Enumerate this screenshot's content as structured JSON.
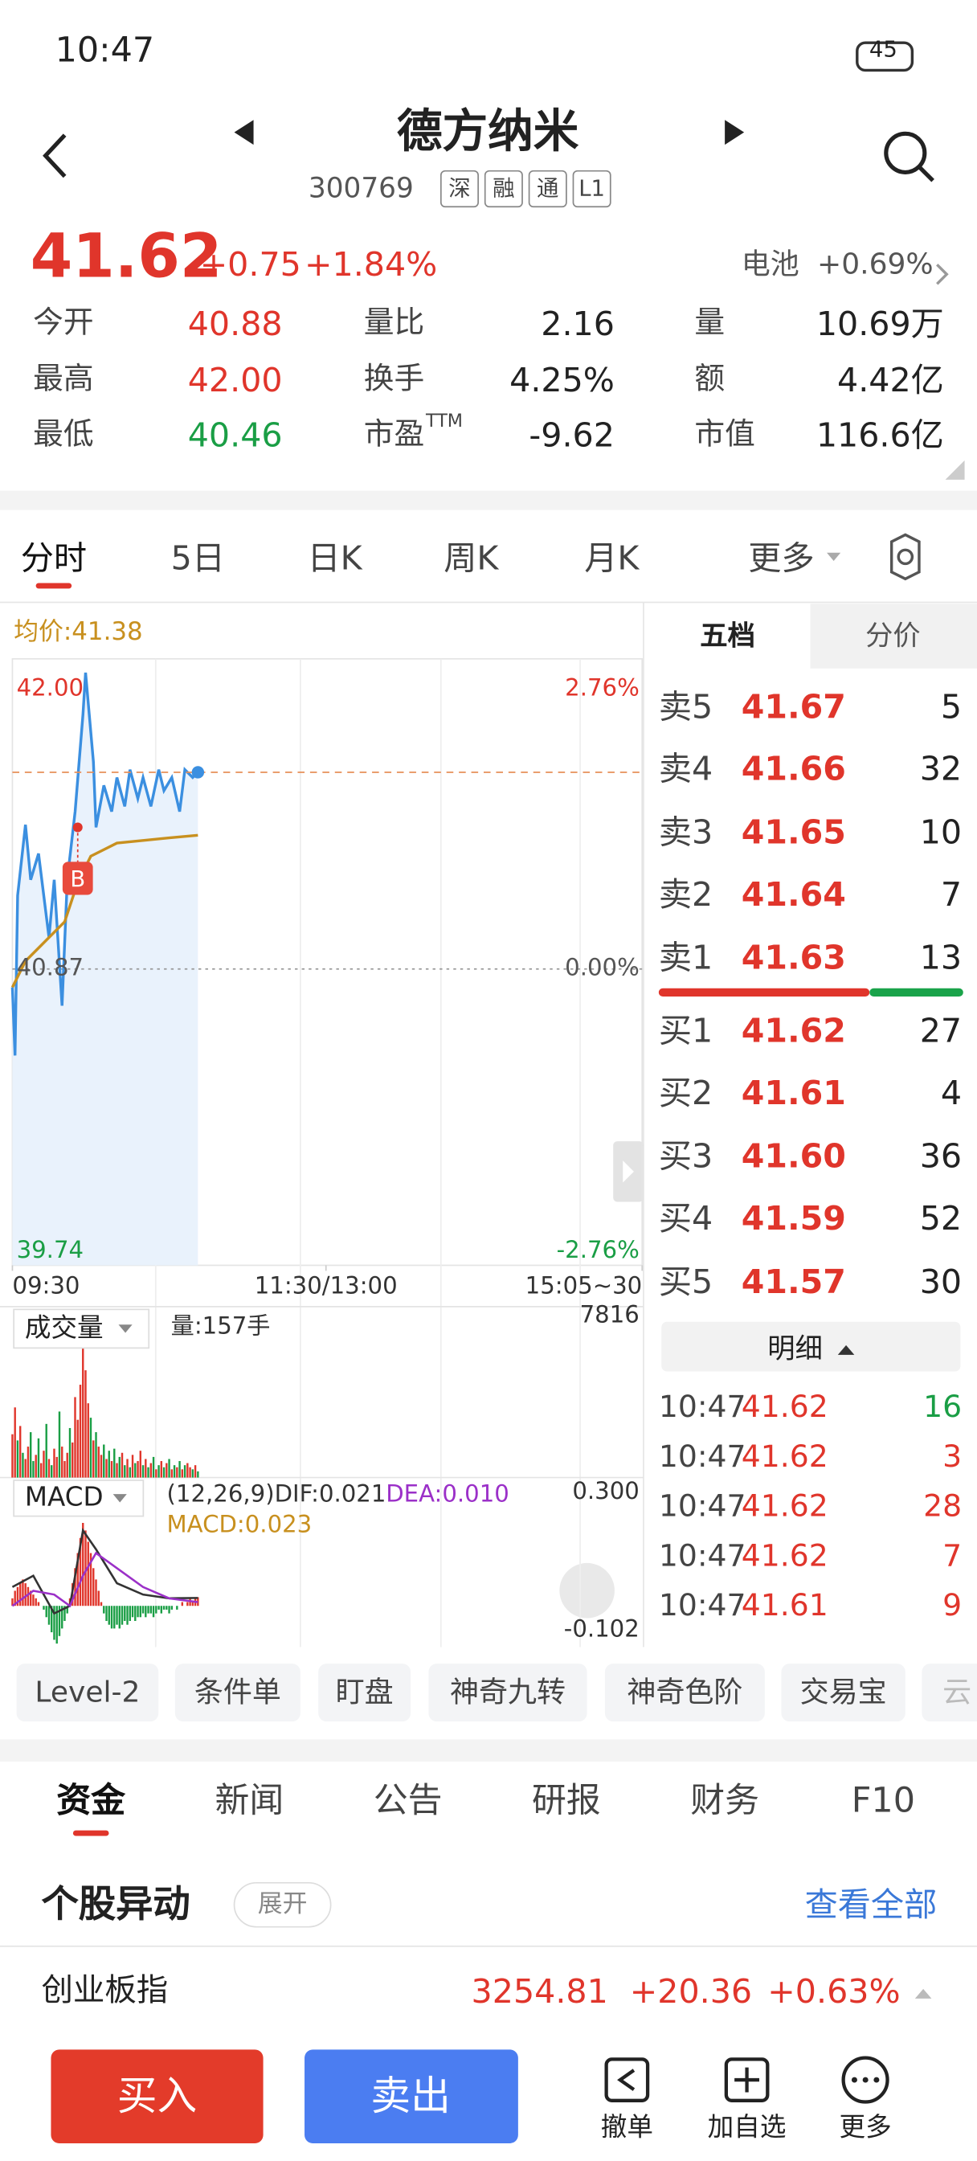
{
  "status": {
    "time": "10:47",
    "battery": "45"
  },
  "header": {
    "title": "德方纳米",
    "code": "300769",
    "tags": [
      "深",
      "融",
      "通",
      "L1"
    ]
  },
  "quote": {
    "price": "41.62",
    "change": "+0.75",
    "pct": "+1.84%",
    "sector": "电池",
    "sector_pct": "+0.69%"
  },
  "stats": [
    {
      "label": "今开",
      "value": "40.88",
      "color": "#e0352b"
    },
    {
      "label": "最高",
      "value": "42.00",
      "color": "#e0352b"
    },
    {
      "label": "最低",
      "value": "40.46",
      "color": "#1a9e45"
    },
    {
      "label": "量比",
      "value": "2.16"
    },
    {
      "label": "换手",
      "value": "4.25%"
    },
    {
      "label": "市盈",
      "sup": "TTM",
      "value": "-9.62"
    },
    {
      "label": "量",
      "value": "10.69万"
    },
    {
      "label": "额",
      "value": "4.42亿"
    },
    {
      "label": "市值",
      "value": "116.6亿"
    }
  ],
  "tabs": [
    "分时",
    "5日",
    "日K",
    "周K",
    "月K",
    "更多"
  ],
  "intraday": {
    "type": "line",
    "avg_label": "均价:41.38",
    "xlim": [
      0,
      241
    ],
    "xticks": [
      {
        "value": 0,
        "label": "09:30"
      },
      {
        "value": 120,
        "label": "11:30/13:00"
      },
      {
        "value": 241,
        "label": "15:05~30"
      }
    ],
    "ylim": [
      39.74,
      42
    ],
    "yticks": [
      {
        "value": 42,
        "label": "42.00"
      },
      40.87,
      39.74
    ],
    "y2lim": [
      -2.76,
      2.76
    ],
    "y2ticks": [
      {
        "value": 2.76,
        "label": "2.76%"
      },
      {
        "value": 0,
        "label": "0.00%"
      },
      {
        "value": -2.76,
        "label": "-2.76%"
      }
    ],
    "series": [
      {
        "color": "#3b8fe0",
        "x": [
          0,
          1,
          2,
          5,
          7,
          10,
          14,
          16,
          19,
          21,
          24,
          27,
          28,
          31,
          32,
          35,
          38,
          40,
          43,
          45,
          48,
          50,
          53,
          56,
          58,
          61,
          64,
          66,
          69,
          71
        ],
        "values": [
          40.8,
          40.54,
          41.15,
          41.42,
          41.21,
          41.31,
          40.99,
          41.21,
          40.73,
          41.21,
          41.47,
          41.84,
          42.0,
          41.66,
          41.41,
          41.57,
          41.47,
          41.6,
          41.49,
          41.63,
          41.52,
          41.6,
          41.49,
          41.63,
          41.55,
          41.6,
          41.47,
          41.63,
          41.6,
          41.62
        ]
      },
      {
        "color": "#c8901f",
        "x": [
          0,
          5,
          10,
          20,
          25,
          30,
          40,
          50,
          60,
          71
        ],
        "values": [
          40.8,
          40.9,
          40.95,
          41.05,
          41.2,
          41.3,
          41.35,
          41.36,
          41.37,
          41.38
        ]
      }
    ],
    "buy_marker": {
      "x": 25,
      "value": 41.41,
      "label": "B"
    }
  },
  "volume": {
    "type": "bar",
    "label": "成交量",
    "info": "量:157手",
    "xlim": [
      0,
      241
    ],
    "ylim": [
      0,
      7816
    ],
    "yticks": [
      7816
    ],
    "values": [
      2100,
      3400,
      1800,
      2500,
      1200,
      900,
      1500,
      2200,
      800,
      1100,
      1900,
      700,
      1300,
      2600,
      900,
      600,
      1400,
      1000,
      3200,
      1500,
      800,
      1200,
      2400,
      1700,
      3900,
      2800,
      4500,
      7816,
      5200,
      3600,
      2900,
      1800,
      2200,
      1500,
      1100,
      1600,
      900,
      1300,
      800,
      1400,
      700,
      1000,
      1200,
      600,
      900,
      500,
      1100,
      700,
      800,
      1300,
      600,
      900,
      500,
      700,
      1000,
      400,
      600,
      800,
      500,
      700,
      900,
      400,
      600,
      500,
      800,
      400,
      600,
      700,
      500,
      400,
      600,
      300
    ],
    "colors": "rrgrgrrggrgrrgrgrrgrrrgrrrrrrrgrgrrgrgrgrgrgrgrgrrgrgrgrgrgrgrgrgrgrrgrg"
  },
  "macd": {
    "type": "bar",
    "label": "MACD",
    "params": "(12,26,9)DIF:0.021",
    "dea": "DEA:0.010",
    "macd": "MACD:0.023",
    "xlim": [
      0,
      241
    ],
    "ylim": [
      -0.102,
      0.3
    ],
    "yticks": [
      {
        "value": 0.3,
        "label": "0.300"
      },
      -0.102
    ],
    "histogram": [
      0.02,
      0.04,
      0.05,
      0.06,
      0.07,
      0.06,
      0.05,
      0.04,
      0.03,
      0.02,
      0.01,
      0.0,
      -0.01,
      -0.03,
      -0.05,
      -0.07,
      -0.09,
      -0.1,
      -0.08,
      -0.06,
      -0.04,
      -0.02,
      0.02,
      0.06,
      0.1,
      0.14,
      0.18,
      0.22,
      0.2,
      0.17,
      0.14,
      0.1,
      0.07,
      0.04,
      0.01,
      -0.02,
      -0.04,
      -0.05,
      -0.06,
      -0.06,
      -0.05,
      -0.06,
      -0.05,
      -0.04,
      -0.05,
      -0.04,
      -0.03,
      -0.04,
      -0.03,
      -0.03,
      -0.02,
      -0.03,
      -0.02,
      -0.02,
      -0.03,
      -0.02,
      -0.01,
      -0.02,
      -0.01,
      -0.01,
      -0.02,
      -0.01,
      0.0,
      -0.01,
      0.0,
      0.01,
      0.0,
      0.01,
      0.02,
      0.01,
      0.02,
      0.023
    ],
    "series": [
      {
        "color": "#333333",
        "x": [
          0,
          8,
          16,
          22,
          27,
          32,
          40,
          50,
          60,
          71
        ],
        "values": [
          0.05,
          0.08,
          -0.02,
          0.0,
          0.2,
          0.15,
          0.06,
          0.03,
          0.02,
          0.021
        ]
      },
      {
        "color": "#9b30c8",
        "x": [
          0,
          8,
          16,
          22,
          27,
          32,
          40,
          50,
          60,
          71
        ],
        "values": [
          0.0,
          0.04,
          0.03,
          0.0,
          0.08,
          0.14,
          0.1,
          0.05,
          0.02,
          0.01
        ]
      }
    ]
  },
  "orderbook": {
    "tabs": [
      "五档",
      "分价"
    ],
    "sells": [
      [
        "卖5",
        "41.67",
        "5"
      ],
      [
        "卖4",
        "41.66",
        "32"
      ],
      [
        "卖3",
        "41.65",
        "10"
      ],
      [
        "卖2",
        "41.64",
        "7"
      ],
      [
        "卖1",
        "41.63",
        "13"
      ]
    ],
    "buys": [
      [
        "买1",
        "41.62",
        "27"
      ],
      [
        "买2",
        "41.61",
        "4"
      ],
      [
        "买3",
        "41.60",
        "36"
      ],
      [
        "买4",
        "41.59",
        "52"
      ],
      [
        "买5",
        "41.57",
        "30"
      ]
    ],
    "detail_title": "明细",
    "details": [
      {
        "row": [
          "10:47",
          "41.62",
          "16"
        ],
        "color": "#1a9e45"
      },
      {
        "row": [
          "10:47",
          "41.62",
          "3"
        ],
        "color": "#e0352b"
      },
      {
        "row": [
          "10:47",
          "41.62",
          "28"
        ],
        "color": "#e0352b"
      },
      {
        "row": [
          "10:47",
          "41.62",
          "7"
        ],
        "color": "#e0352b"
      },
      {
        "row": [
          "10:47",
          "41.61",
          "9"
        ],
        "color": "#e0352b"
      }
    ]
  },
  "tools": [
    "Level-2",
    "条件单",
    "盯盘",
    "神奇九转",
    "神奇色阶",
    "交易宝",
    "云"
  ],
  "news_tabs": [
    "资金",
    "新闻",
    "公告",
    "研报",
    "财务",
    "F10"
  ],
  "section": {
    "title": "个股异动",
    "expand": "展开",
    "view_all": "查看全部"
  },
  "index_bar": {
    "name": "创业板指",
    "value": "3254.81",
    "change": "+20.36",
    "pct": "+0.63%"
  },
  "actions": {
    "buy": "买入",
    "sell": "卖出",
    "icons": [
      "撤单",
      "加自选",
      "更多"
    ]
  }
}
